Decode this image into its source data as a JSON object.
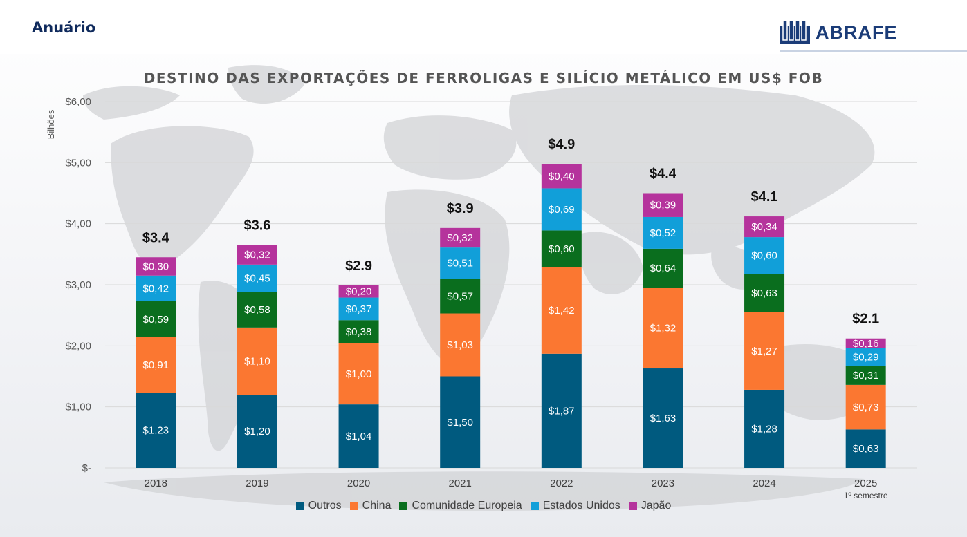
{
  "header": {
    "page_label": "Anuário",
    "logo_text": "ABRAFE"
  },
  "chart_data": {
    "type": "bar",
    "stacked": true,
    "title": "DESTINO DAS EXPORTAÇÕES DE FERROLIGAS E SILÍCIO METÁLICO EM US$ FOB",
    "ylabel": "Bilhões",
    "xlabel": "",
    "ylim": [
      0,
      6
    ],
    "yticks": [
      0,
      1,
      2,
      3,
      4,
      5,
      6
    ],
    "ytick_labels": [
      "$-",
      "$1,00",
      "$2,00",
      "$3,00",
      "$4,00",
      "$5,00",
      "$6,00"
    ],
    "grid": true,
    "legend_position": "bottom",
    "categories": [
      "2018",
      "2019",
      "2020",
      "2021",
      "2022",
      "2023",
      "2024",
      "2025"
    ],
    "category_sublabels": [
      "",
      "",
      "",
      "",
      "",
      "",
      "",
      "1º semestre"
    ],
    "totals": [
      "$3.4",
      "$3.6",
      "$2.9",
      "$3.9",
      "$4.9",
      "$4.4",
      "$4.1",
      "$2.1"
    ],
    "series": [
      {
        "name": "Outros",
        "color": "#005a7f",
        "values": [
          1.23,
          1.2,
          1.04,
          1.5,
          1.87,
          1.63,
          1.28,
          0.63
        ],
        "labels": [
          "$1,23",
          "$1,20",
          "$1,04",
          "$1,50",
          "$1,87",
          "$1,63",
          "$1,28",
          "$0,63"
        ]
      },
      {
        "name": "China",
        "color": "#fb7731",
        "values": [
          0.91,
          1.1,
          1.0,
          1.03,
          1.42,
          1.32,
          1.27,
          0.73
        ],
        "labels": [
          "$0,91",
          "$1,10",
          "$1,00",
          "$1,03",
          "$1,42",
          "$1,32",
          "$1,27",
          "$0,73"
        ]
      },
      {
        "name": "Comunidade Europeia",
        "color": "#0a6e1e",
        "values": [
          0.59,
          0.58,
          0.38,
          0.57,
          0.6,
          0.64,
          0.63,
          0.31
        ],
        "labels": [
          "$0,59",
          "$0,58",
          "$0,38",
          "$0,57",
          "$0,60",
          "$0,64",
          "$0,63",
          "$0,31"
        ]
      },
      {
        "name": "Estados Unidos",
        "color": "#119fd9",
        "values": [
          0.42,
          0.45,
          0.37,
          0.51,
          0.69,
          0.52,
          0.6,
          0.29
        ],
        "labels": [
          "$0,42",
          "$0,45",
          "$0,37",
          "$0,51",
          "$0,69",
          "$0,52",
          "$0,60",
          "$0,29"
        ]
      },
      {
        "name": "Japão",
        "color": "#b5339c",
        "values": [
          0.3,
          0.32,
          0.2,
          0.32,
          0.4,
          0.39,
          0.34,
          0.16
        ],
        "labels": [
          "$0,30",
          "$0,32",
          "$0,20",
          "$0,32",
          "$0,40",
          "$0,39",
          "$0,34",
          "$0,16"
        ]
      }
    ]
  }
}
